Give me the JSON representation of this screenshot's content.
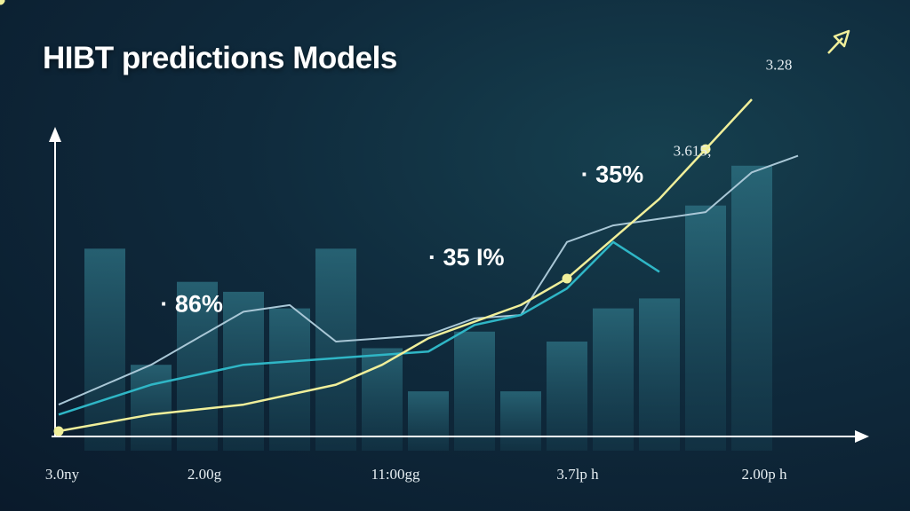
{
  "title": "HIBT predictions Models",
  "colors": {
    "background": "#0f2a3c",
    "bars": "#2b6d7d",
    "series_1_line": "#a9c7d6",
    "series_2_line": "#2fb6c6",
    "series_3_line": "#f0ef9a",
    "axis": "#ffffff"
  },
  "chart_data": {
    "type": "line",
    "title": "HIBT predictions Models",
    "x_tick_labels": [
      "3.0ny",
      "2.00g",
      "11:00gg",
      "3.7lp h",
      "2.00p h"
    ],
    "ylim": [
      0,
      100
    ],
    "grid": false,
    "legend": "none",
    "bars": {
      "x": [
        1,
        2,
        3,
        4,
        5,
        6,
        7,
        8,
        9,
        10,
        11,
        12,
        13,
        14,
        15
      ],
      "values": [
        55,
        20,
        45,
        42,
        37,
        55,
        25,
        12,
        30,
        12,
        27,
        37,
        40,
        68,
        80
      ]
    },
    "series": [
      {
        "x": [
          0,
          2,
          4,
          5,
          6,
          8,
          9,
          10,
          11,
          12,
          13,
          14,
          15,
          16
        ],
        "values": [
          8,
          20,
          36,
          38,
          27,
          29,
          34,
          35,
          57,
          62,
          64,
          66,
          78,
          83
        ]
      },
      {
        "x": [
          0,
          2,
          4,
          5,
          6,
          8,
          9,
          10,
          11,
          12,
          13
        ],
        "values": [
          5,
          14,
          20,
          21,
          22,
          24,
          32,
          35,
          43,
          57,
          48
        ]
      },
      {
        "x": [
          0,
          2,
          4,
          6,
          7,
          8,
          10,
          11,
          12,
          13,
          14,
          15
        ],
        "values": [
          0,
          5,
          8,
          14,
          20,
          28,
          38,
          46,
          58,
          70,
          85,
          100
        ],
        "markers": [
          0,
          7,
          10,
          12,
          14,
          15
        ]
      }
    ],
    "annotations": [
      {
        "text": "· 86%",
        "x": 2.2,
        "y": 36,
        "style": "large"
      },
      {
        "text": "· 35 I%",
        "x": 8.0,
        "y": 50,
        "style": "large"
      },
      {
        "text": "· 35%",
        "x": 11.3,
        "y": 75,
        "style": "large"
      },
      {
        "text": "3.615;",
        "x": 13.3,
        "y": 83,
        "style": "small"
      },
      {
        "text": "3.28",
        "x": 15.3,
        "y": 109,
        "style": "small"
      }
    ]
  }
}
